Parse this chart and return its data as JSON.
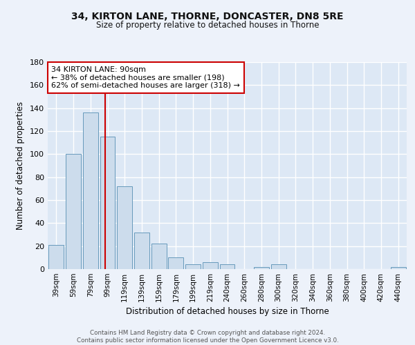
{
  "title1": "34, KIRTON LANE, THORNE, DONCASTER, DN8 5RE",
  "title2": "Size of property relative to detached houses in Thorne",
  "xlabel": "Distribution of detached houses by size in Thorne",
  "ylabel": "Number of detached properties",
  "bar_labels": [
    "39sqm",
    "59sqm",
    "79sqm",
    "99sqm",
    "119sqm",
    "139sqm",
    "159sqm",
    "179sqm",
    "199sqm",
    "219sqm",
    "240sqm",
    "260sqm",
    "280sqm",
    "300sqm",
    "320sqm",
    "340sqm",
    "360sqm",
    "380sqm",
    "400sqm",
    "420sqm",
    "440sqm"
  ],
  "bar_values": [
    21,
    100,
    136,
    115,
    72,
    32,
    22,
    10,
    4,
    6,
    4,
    0,
    2,
    4,
    0,
    0,
    0,
    0,
    0,
    0,
    2
  ],
  "bar_color": "#ccdcec",
  "bar_edge_color": "#6699bb",
  "background_color": "#dde8f5",
  "grid_color": "#ffffff",
  "annotation_box_text": "34 KIRTON LANE: 90sqm\n← 38% of detached houses are smaller (198)\n62% of semi-detached houses are larger (318) →",
  "annotation_box_color": "#ffffff",
  "annotation_box_edge_color": "#cc0000",
  "annotation_line_color": "#cc0000",
  "ylim": [
    0,
    180
  ],
  "yticks": [
    0,
    20,
    40,
    60,
    80,
    100,
    120,
    140,
    160,
    180
  ],
  "footer_text": "Contains HM Land Registry data © Crown copyright and database right 2024.\nContains public sector information licensed under the Open Government Licence v3.0.",
  "fig_bg_color": "#edf2fa",
  "red_line_x": 2.85
}
